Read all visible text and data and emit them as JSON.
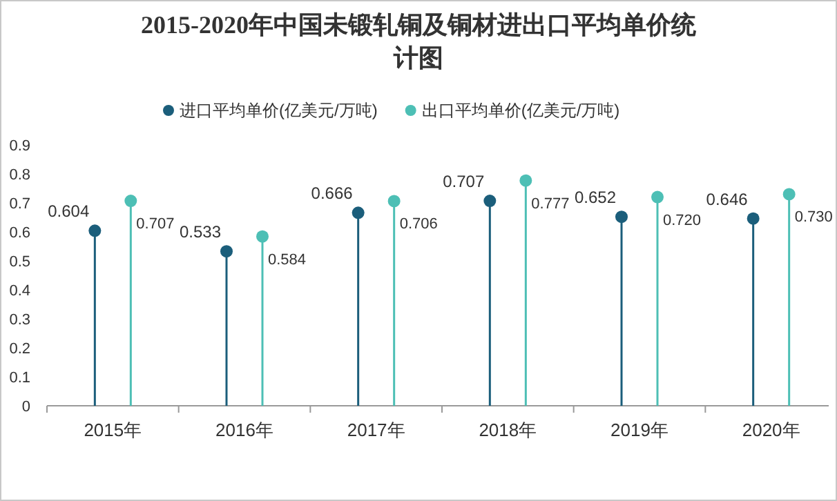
{
  "chart_data": {
    "type": "lollipop",
    "title": "2015-2020年中国未锻轧铜及铜材进出口平均单价统计图",
    "categories": [
      "2015年",
      "2016年",
      "2017年",
      "2018年",
      "2019年",
      "2020年"
    ],
    "series": [
      {
        "name": "进口平均单价(亿美元/万吨)",
        "color": "#1b5e7b",
        "values": [
          0.604,
          0.533,
          0.666,
          0.707,
          0.652,
          0.646
        ],
        "value_labels": [
          "0.604",
          "0.533",
          "0.666",
          "0.707",
          "0.652",
          "0.646"
        ]
      },
      {
        "name": "出口平均单价(亿美元/万吨)",
        "color": "#4dbfb5",
        "values": [
          0.707,
          0.584,
          0.706,
          0.777,
          0.72,
          0.73
        ],
        "value_labels": [
          "0.707",
          "0.584",
          "0.706",
          "0.777",
          "0.720",
          "0.730"
        ]
      }
    ],
    "ylim": [
      0,
      0.9
    ],
    "yticks": [
      0,
      0.1,
      0.2,
      0.3,
      0.4,
      0.5,
      0.6,
      0.7,
      0.8,
      0.9
    ],
    "legend": "top",
    "marker": "circle"
  }
}
